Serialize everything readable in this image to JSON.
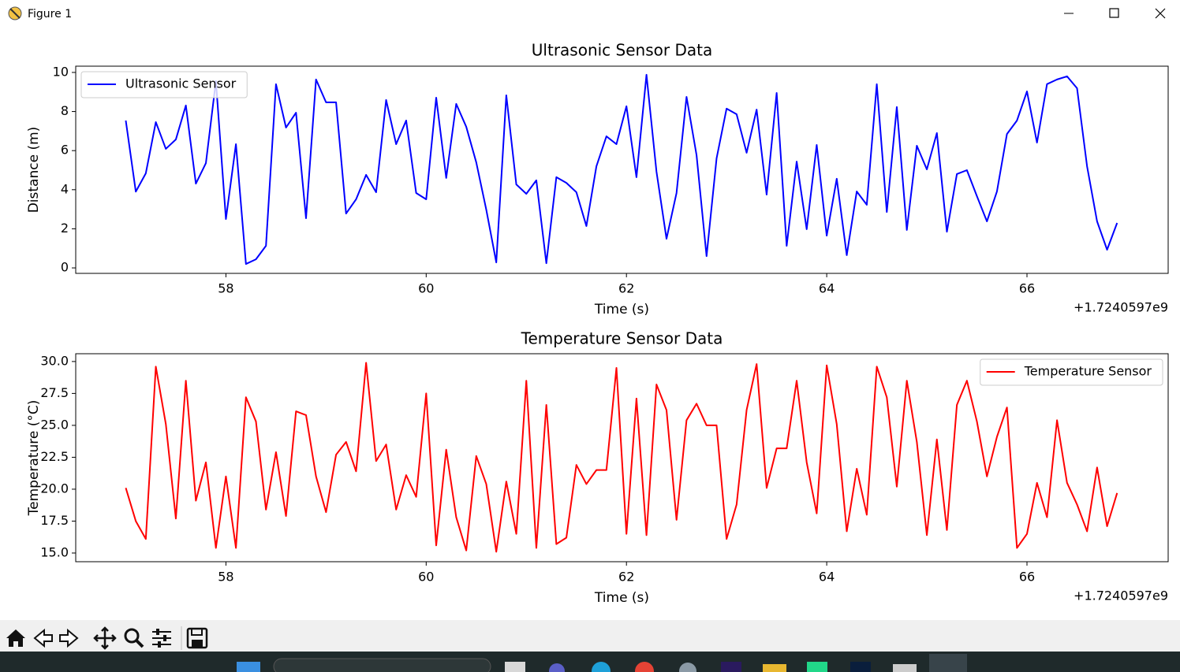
{
  "window": {
    "title": "Figure 1"
  },
  "chart_data": [
    {
      "type": "line",
      "title": "Ultrasonic Sensor Data",
      "xlabel": "Time (s)",
      "ylabel": "Distance (m)",
      "x_offset_label": "+1.7240597e9",
      "x": [
        57.0,
        57.1,
        57.2,
        57.3,
        57.4,
        57.5,
        57.6,
        57.7,
        57.8,
        57.9,
        58.0,
        58.1,
        58.2,
        58.3,
        58.4,
        58.5,
        58.6,
        58.7,
        58.8,
        58.9,
        59.0,
        59.1,
        59.2,
        59.3,
        59.4,
        59.5,
        59.6,
        59.7,
        59.8,
        59.9,
        60.0,
        60.1,
        60.2,
        60.3,
        60.4,
        60.5,
        60.6,
        60.7,
        60.8,
        60.9,
        61.0,
        61.1,
        61.2,
        61.3,
        61.4,
        61.5,
        61.6,
        61.7,
        61.8,
        61.9,
        62.0,
        62.1,
        62.2,
        62.3,
        62.4,
        62.5,
        62.6,
        62.7,
        62.8,
        62.9,
        63.0,
        63.1,
        63.2,
        63.3,
        63.4,
        63.5,
        63.6,
        63.7,
        63.8,
        63.9,
        64.0,
        64.1,
        64.2,
        64.3,
        64.4,
        64.5,
        64.6,
        64.7,
        64.8,
        64.9,
        65.0,
        65.1,
        65.2,
        65.3,
        65.4,
        65.5,
        65.6,
        65.7,
        65.8,
        65.9,
        66.0,
        66.1,
        66.2,
        66.3,
        66.4,
        66.5,
        66.6,
        66.7,
        66.8,
        66.9
      ],
      "series": [
        {
          "name": "Ultrasonic Sensor",
          "color": "#0000ff",
          "values": [
            7.54,
            3.9,
            4.84,
            7.46,
            6.09,
            6.57,
            8.31,
            4.31,
            5.36,
            9.56,
            2.5,
            6.33,
            0.2,
            0.44,
            1.13,
            9.4,
            7.18,
            7.94,
            2.54,
            9.64,
            8.47,
            8.47,
            2.78,
            3.51,
            4.76,
            3.87,
            8.59,
            6.33,
            7.54,
            3.83,
            3.51,
            8.71,
            4.6,
            8.39,
            7.22,
            5.4,
            2.98,
            0.28,
            8.83,
            4.27,
            3.79,
            4.48,
            0.24,
            4.64,
            4.35,
            3.87,
            2.14,
            5.2,
            6.73,
            6.33,
            8.27,
            4.64,
            9.88,
            4.92,
            1.49,
            3.83,
            8.75,
            5.77,
            0.6,
            5.6,
            8.15,
            7.86,
            5.89,
            8.1,
            3.75,
            8.95,
            1.13,
            5.44,
            1.98,
            6.29,
            1.65,
            4.56,
            0.65,
            3.91,
            3.23,
            9.4,
            2.86,
            8.23,
            1.94,
            6.25,
            5.04,
            6.9,
            1.85,
            4.8,
            5.0,
            3.67,
            2.38,
            3.91,
            6.85,
            7.54,
            9.03,
            6.41,
            9.4,
            9.64,
            9.8,
            9.19,
            5.2,
            2.38,
            0.93,
            2.3
          ]
        }
      ],
      "xlim": [
        56.5,
        67.41
      ],
      "ylim": [
        -0.28,
        10.32
      ],
      "xticks": [
        58,
        60,
        62,
        64,
        66
      ],
      "yticks": [
        0,
        2,
        4,
        6,
        8,
        10
      ],
      "legend": "upper left"
    },
    {
      "type": "line",
      "title": "Temperature Sensor Data",
      "xlabel": "Time (s)",
      "ylabel": "Temperature (°C)",
      "x_offset_label": "+1.7240597e9",
      "x": [
        57.0,
        57.1,
        57.2,
        57.3,
        57.4,
        57.5,
        57.6,
        57.7,
        57.8,
        57.9,
        58.0,
        58.1,
        58.2,
        58.3,
        58.4,
        58.5,
        58.6,
        58.7,
        58.8,
        58.9,
        59.0,
        59.1,
        59.2,
        59.3,
        59.4,
        59.5,
        59.6,
        59.7,
        59.8,
        59.9,
        60.0,
        60.1,
        60.2,
        60.3,
        60.4,
        60.5,
        60.6,
        60.7,
        60.8,
        60.9,
        61.0,
        61.1,
        61.2,
        61.3,
        61.4,
        61.5,
        61.6,
        61.7,
        61.8,
        61.9,
        62.0,
        62.1,
        62.2,
        62.3,
        62.4,
        62.5,
        62.6,
        62.7,
        62.8,
        62.9,
        63.0,
        63.1,
        63.2,
        63.3,
        63.4,
        63.5,
        63.6,
        63.7,
        63.8,
        63.9,
        64.0,
        64.1,
        64.2,
        64.3,
        64.4,
        64.5,
        64.6,
        64.7,
        64.8,
        64.9,
        65.0,
        65.1,
        65.2,
        65.3,
        65.4,
        65.5,
        65.6,
        65.7,
        65.8,
        65.9,
        66.0,
        66.1,
        66.2,
        66.3,
        66.4,
        66.5,
        66.6,
        66.7,
        66.8,
        66.9
      ],
      "series": [
        {
          "name": "Temperature Sensor",
          "color": "#ff0000",
          "values": [
            20.1,
            17.5,
            16.1,
            29.6,
            25.1,
            17.7,
            28.5,
            19.1,
            22.1,
            15.4,
            21.0,
            15.4,
            27.2,
            25.3,
            18.4,
            22.9,
            17.9,
            26.1,
            25.8,
            21.0,
            18.2,
            22.7,
            23.7,
            21.4,
            29.9,
            22.2,
            23.5,
            18.4,
            21.1,
            19.4,
            27.5,
            15.6,
            23.1,
            17.8,
            15.2,
            22.6,
            20.4,
            15.1,
            20.6,
            16.5,
            28.5,
            15.4,
            26.6,
            15.7,
            16.2,
            21.9,
            20.4,
            21.5,
            21.5,
            29.5,
            16.5,
            27.1,
            16.4,
            28.2,
            26.2,
            17.6,
            25.4,
            26.7,
            25.0,
            25.0,
            16.1,
            18.8,
            26.2,
            29.8,
            20.1,
            23.2,
            23.2,
            28.5,
            22.1,
            18.1,
            29.7,
            25.1,
            16.7,
            21.6,
            18.0,
            29.6,
            27.2,
            20.2,
            28.5,
            23.7,
            16.4,
            23.9,
            16.8,
            26.6,
            28.5,
            25.3,
            21.0,
            24.1,
            26.4,
            15.4,
            16.5,
            20.5,
            17.8,
            25.4,
            20.5,
            18.8,
            16.7,
            21.7,
            17.1,
            19.7
          ]
        }
      ],
      "xlim": [
        56.5,
        67.41
      ],
      "ylim": [
        14.32,
        30.61
      ],
      "xticks": [
        58,
        60,
        62,
        64,
        66
      ],
      "yticks": [
        {
          "value": 15,
          "label": "15.0"
        },
        17.5,
        {
          "value": 20,
          "label": "20.0"
        },
        22.5,
        {
          "value": 25,
          "label": "25.0"
        },
        27.5,
        {
          "value": 30,
          "label": "30.0"
        }
      ],
      "legend": "upper right"
    }
  ]
}
